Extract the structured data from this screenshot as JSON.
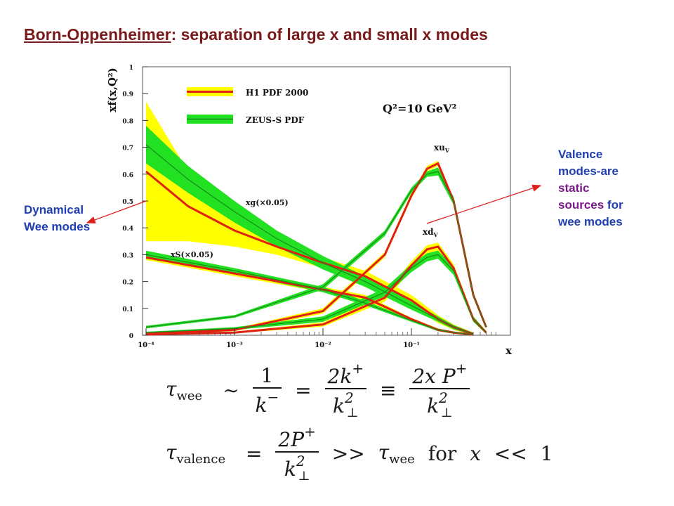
{
  "title": {
    "underlined": "Born-Oppenheimer",
    "rest": ": separation of large x and small x modes"
  },
  "notes": {
    "left_line1": "Dynamical",
    "left_line2": "Wee modes",
    "right_line1": "Valence",
    "right_line2": "modes-are",
    "right_line3": "static",
    "right_line4": "sources",
    "right_line4_rest": " for",
    "right_line5": "wee modes"
  },
  "colors": {
    "title": "#7a1a1a",
    "note_blue": "#1f3fb0",
    "note_purple": "#7a1a8a",
    "h1_band": "#ffff00",
    "h1_line": "#e02010",
    "zeus_band": "#22e022",
    "zeus_line": "#1a8a1a",
    "arrow": "#e02020"
  },
  "equations": {
    "eq1": {
      "lhs": "τ",
      "lhs_sub": "wee",
      "sim": "∼",
      "f1_num": "1",
      "f1_den": "k",
      "f1_den_sup": "−",
      "eq": "=",
      "f2_num": "2k",
      "f2_num_sup": "+",
      "f2_den": "k",
      "f2_den_sup": "2",
      "f2_den_sub": "⊥",
      "equiv": "≡",
      "f3_num": "2x P",
      "f3_num_sup": "+",
      "f3_den": "k",
      "f3_den_sup": "2",
      "f3_den_sub": "⊥"
    },
    "eq2": {
      "lhs": "τ",
      "lhs_sub": "valence",
      "eq": "=",
      "f_num": "2P",
      "f_num_sup": "+",
      "f_den": "k",
      "f_den_sup": "2",
      "f_den_sub": "⊥",
      "gg": ">>",
      "rhs": "τ",
      "rhs_sub": "wee",
      "for": "for",
      "x": "x",
      "ll": "<<",
      "one": "1"
    }
  },
  "chart_data": {
    "type": "line",
    "ylabel": "xf(x,Q²)",
    "xlabel": "x",
    "annotation": "Q²=10 GeV²",
    "x_scale": "log",
    "xlim": [
      0.0001,
      1
    ],
    "ylim": [
      0,
      1
    ],
    "grid": false,
    "legend_position": "top-left",
    "legend": [
      "H1 PDF 2000",
      "ZEUS-S PDF"
    ],
    "x_tick_labels": [
      "10⁻⁴",
      "10⁻³",
      "10⁻²",
      "10⁻¹"
    ],
    "x_ticks": [
      0.0001,
      0.001,
      0.01,
      0.1
    ],
    "y_ticks": [
      0,
      0.1,
      0.2,
      0.3,
      0.4,
      0.5,
      0.6,
      0.7,
      0.8,
      0.9,
      1
    ],
    "y_tick_labels": [
      "0",
      "0.1",
      "0.2",
      "0.3",
      "0.4",
      "0.5",
      "0.6",
      "0.7",
      "0.8",
      "0.9",
      "1"
    ],
    "curve_labels": [
      "xu",
      "xd",
      "xg(×0.05)",
      "xS(×0.05)"
    ],
    "curve_label_subscript": "V",
    "series": [
      {
        "name": "xu",
        "pdf": "H1 PDF 2000",
        "x": [
          0.0001,
          0.001,
          0.01,
          0.05,
          0.1,
          0.15,
          0.2,
          0.3,
          0.5,
          0.7
        ],
        "y": [
          0.005,
          0.02,
          0.09,
          0.3,
          0.52,
          0.62,
          0.64,
          0.5,
          0.15,
          0.03
        ],
        "err": [
          0.002,
          0.005,
          0.01,
          0.01,
          0.01,
          0.01,
          0.01,
          0.01,
          0.01,
          0.005
        ]
      },
      {
        "name": "xu",
        "pdf": "ZEUS-S PDF",
        "x": [
          0.0001,
          0.001,
          0.01,
          0.05,
          0.1,
          0.15,
          0.2,
          0.3,
          0.5,
          0.7
        ],
        "y": [
          0.03,
          0.07,
          0.18,
          0.38,
          0.54,
          0.6,
          0.61,
          0.5,
          0.15,
          0.03
        ],
        "err": [
          0.005,
          0.005,
          0.01,
          0.01,
          0.01,
          0.01,
          0.015,
          0.015,
          0.01,
          0.005
        ]
      },
      {
        "name": "xd",
        "pdf": "H1 PDF 2000",
        "x": [
          0.0001,
          0.001,
          0.01,
          0.05,
          0.1,
          0.15,
          0.2,
          0.3,
          0.5,
          0.7
        ],
        "y": [
          0.003,
          0.01,
          0.04,
          0.14,
          0.26,
          0.32,
          0.33,
          0.25,
          0.06,
          0.01
        ],
        "err": [
          0.002,
          0.003,
          0.008,
          0.015,
          0.015,
          0.015,
          0.015,
          0.015,
          0.01,
          0.005
        ]
      },
      {
        "name": "xd",
        "pdf": "ZEUS-S PDF",
        "x": [
          0.0001,
          0.001,
          0.01,
          0.05,
          0.1,
          0.15,
          0.2,
          0.3,
          0.5,
          0.7
        ],
        "y": [
          0.01,
          0.025,
          0.06,
          0.16,
          0.25,
          0.29,
          0.3,
          0.24,
          0.06,
          0.01
        ],
        "err": [
          0.003,
          0.005,
          0.01,
          0.015,
          0.015,
          0.015,
          0.015,
          0.015,
          0.01,
          0.005
        ]
      },
      {
        "name": "xg(×0.05)",
        "pdf": "H1 PDF 2000",
        "x": [
          0.0001,
          0.0003,
          0.001,
          0.003,
          0.01,
          0.03,
          0.1,
          0.2,
          0.3,
          0.5
        ],
        "y": [
          0.61,
          0.48,
          0.39,
          0.33,
          0.27,
          0.22,
          0.13,
          0.06,
          0.03,
          0.005
        ],
        "err": [
          0.26,
          0.13,
          0.06,
          0.03,
          0.02,
          0.02,
          0.02,
          0.015,
          0.01,
          0.005
        ]
      },
      {
        "name": "xg(×0.05)",
        "pdf": "ZEUS-S PDF",
        "x": [
          0.0001,
          0.0003,
          0.001,
          0.003,
          0.01,
          0.03,
          0.1,
          0.2,
          0.3,
          0.5
        ],
        "y": [
          0.71,
          0.58,
          0.46,
          0.36,
          0.27,
          0.2,
          0.11,
          0.06,
          0.03,
          0.005
        ],
        "err": [
          0.07,
          0.05,
          0.04,
          0.03,
          0.025,
          0.02,
          0.015,
          0.01,
          0.008,
          0.004
        ]
      },
      {
        "name": "xS(×0.05)",
        "pdf": "H1 PDF 2000",
        "x": [
          0.0001,
          0.001,
          0.01,
          0.03,
          0.1,
          0.2,
          0.3,
          0.5
        ],
        "y": [
          0.29,
          0.23,
          0.17,
          0.14,
          0.06,
          0.02,
          0.01,
          0.002
        ],
        "err": [
          0.01,
          0.01,
          0.01,
          0.01,
          0.005,
          0.005,
          0.004,
          0.002
        ]
      },
      {
        "name": "xS(×0.05)",
        "pdf": "ZEUS-S PDF",
        "x": [
          0.0001,
          0.001,
          0.01,
          0.03,
          0.1,
          0.2,
          0.3,
          0.5
        ],
        "y": [
          0.3,
          0.24,
          0.17,
          0.12,
          0.055,
          0.02,
          0.01,
          0.002
        ],
        "err": [
          0.015,
          0.01,
          0.01,
          0.008,
          0.005,
          0.005,
          0.004,
          0.002
        ]
      }
    ]
  }
}
